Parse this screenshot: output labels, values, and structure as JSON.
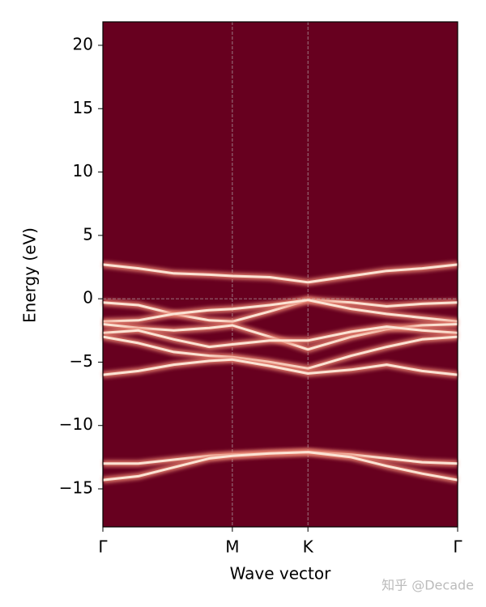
{
  "chart_data": {
    "type": "line",
    "xlabel": "Wave vector",
    "ylabel": "Energy (eV)",
    "watermark": "知乎 @Decade",
    "background": "#67001f",
    "xlim": [
      0,
      1
    ],
    "xticks": [
      {
        "value": 0,
        "label": "Γ"
      },
      {
        "value": 0.365,
        "label": "M"
      },
      {
        "value": 0.578,
        "label": "K"
      },
      {
        "value": 1,
        "label": "Γ"
      }
    ],
    "ylim": [
      -18,
      21.85
    ],
    "yticks": [
      {
        "value": -15,
        "label": "−15"
      },
      {
        "value": -10,
        "label": "−10"
      },
      {
        "value": -5,
        "label": "−5"
      },
      0,
      5,
      10,
      15,
      20
    ],
    "hline": 0,
    "x": [
      0,
      0.1,
      0.2,
      0.3,
      0.365,
      0.47,
      0.578,
      0.7,
      0.8,
      0.9,
      1
    ],
    "series": [
      {
        "color": "#fbe3d4",
        "values": [
          2.7,
          2.4,
          2.0,
          1.9,
          1.8,
          1.7,
          1.3,
          1.8,
          2.2,
          2.4,
          2.7
        ]
      },
      {
        "color": "#fbe3d4",
        "values": [
          -0.3,
          -0.5,
          -1.2,
          -1.7,
          -1.8,
          -1.0,
          -0.1,
          -0.3,
          -0.6,
          -0.4,
          -0.3
        ]
      },
      {
        "color": "#fbe3d4",
        "values": [
          -1.8,
          -1.7,
          -1.2,
          -0.9,
          -0.8,
          -0.5,
          -0.1,
          -0.8,
          -1.2,
          -1.5,
          -1.8
        ]
      },
      {
        "color": "#fbe3d4",
        "values": [
          -2.0,
          -2.3,
          -2.5,
          -2.3,
          -2.1,
          -3.0,
          -4.0,
          -3.0,
          -2.4,
          -2.1,
          -2.0
        ]
      },
      {
        "color": "#fbe3d4",
        "values": [
          -2.7,
          -2.5,
          -3.2,
          -3.8,
          -3.6,
          -3.3,
          -3.3,
          -2.6,
          -2.2,
          -2.5,
          -2.7
        ]
      },
      {
        "color": "#fbe3d4",
        "values": [
          -3.0,
          -3.5,
          -4.2,
          -4.5,
          -4.6,
          -5.0,
          -5.5,
          -4.5,
          -3.8,
          -3.2,
          -3.0
        ]
      },
      {
        "color": "#fbe3d4",
        "values": [
          -6.0,
          -5.7,
          -5.2,
          -4.9,
          -4.8,
          -5.3,
          -5.9,
          -5.6,
          -5.2,
          -5.7,
          -6.0
        ]
      },
      {
        "color": "#fbe3d4",
        "values": [
          -13.0,
          -13.0,
          -12.7,
          -12.4,
          -12.3,
          -12.2,
          -12.1,
          -12.3,
          -12.6,
          -12.9,
          -13.0
        ]
      },
      {
        "color": "#fbe3d4",
        "values": [
          -14.3,
          -14.0,
          -13.3,
          -12.6,
          -12.4,
          -12.2,
          -12.1,
          -12.5,
          -13.2,
          -13.8,
          -14.3
        ]
      }
    ]
  }
}
